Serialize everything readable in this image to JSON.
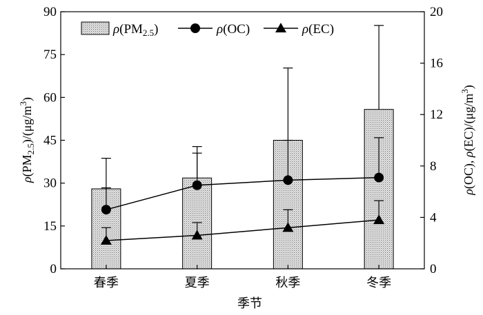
{
  "chart_data": {
    "type": "bar+line",
    "categories": [
      "春季",
      "夏季",
      "秋季",
      "冬季"
    ],
    "xlabel": "季节",
    "y_left": {
      "label_parts": {
        "rho": "ρ",
        "open": "(PM",
        "sub": "2.5",
        "close": ")/(μg/m",
        "sup": "3",
        "end": ")"
      },
      "ylim": [
        0,
        90
      ],
      "ticks": [
        "0",
        "15",
        "30",
        "45",
        "60",
        "75",
        "90"
      ]
    },
    "y_right": {
      "label_parts": {
        "rho1": "ρ",
        "mid": "(OC), ",
        "rho2": "ρ",
        "end1": "(EC)/(μg/m",
        "sup": "3",
        "end2": ")"
      },
      "ylim": [
        0,
        20
      ],
      "ticks": [
        "0",
        "4",
        "8",
        "12",
        "16",
        "20"
      ]
    },
    "series": [
      {
        "name": "ρ(PM2.5)",
        "kind": "bar",
        "axis": "left",
        "values": [
          28,
          31.8,
          45,
          55.8
        ],
        "error_upper": [
          38.7,
          42.8,
          70.3,
          85.2
        ]
      },
      {
        "name": "ρ(OC)",
        "kind": "line",
        "marker": "circle",
        "axis": "right",
        "values": [
          4.6,
          6.5,
          6.9,
          7.1
        ],
        "error_upper": [
          6.3,
          9.0,
          10.0,
          10.2
        ]
      },
      {
        "name": "ρ(EC)",
        "kind": "line",
        "marker": "triangle",
        "axis": "right",
        "values": [
          2.2,
          2.6,
          3.2,
          3.8
        ],
        "error_upper": [
          3.2,
          3.6,
          4.6,
          5.3
        ]
      }
    ],
    "legend": {
      "position": "top-left",
      "pm": {
        "rho": "ρ",
        "open": "(PM",
        "sub": "2.5",
        "close": ")"
      },
      "oc": {
        "rho": "ρ",
        "text": "(OC)"
      },
      "ec": {
        "rho": "ρ",
        "text": "(EC)"
      }
    },
    "grid": false
  }
}
